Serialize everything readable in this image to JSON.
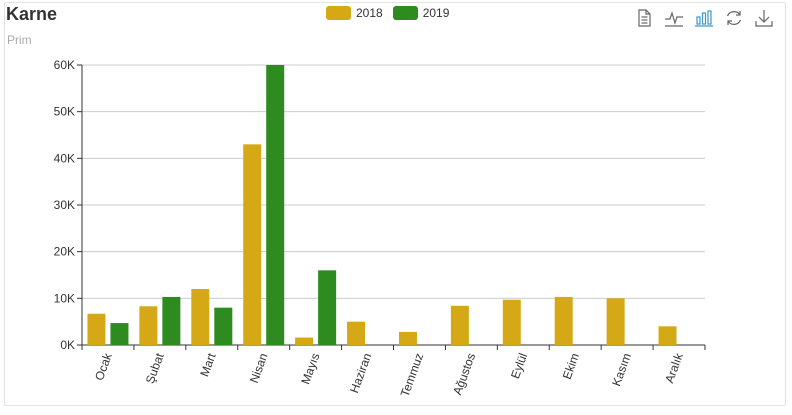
{
  "chart_data": {
    "type": "bar",
    "title": "Karne",
    "subtitle": "Prim",
    "categories": [
      "Ocak",
      "Şubat",
      "Mart",
      "Nisan",
      "Mayıs",
      "Haziran",
      "Temmuz",
      "Ağustos",
      "Eylül",
      "Ekim",
      "Kasım",
      "Aralık"
    ],
    "series": [
      {
        "name": "2018",
        "color": "#d4a915",
        "values": [
          6700,
          8300,
          12000,
          43000,
          1600,
          5000,
          2800,
          8400,
          9700,
          10300,
          10000,
          4000
        ]
      },
      {
        "name": "2019",
        "color": "#2e8b1f",
        "values": [
          4700,
          10300,
          8000,
          60000,
          16000,
          null,
          null,
          null,
          null,
          null,
          null,
          null
        ]
      }
    ],
    "y_ticks": [
      "0K",
      "10K",
      "20K",
      "30K",
      "40K",
      "50K",
      "60K"
    ],
    "ylim": [
      0,
      60000
    ],
    "grid": true,
    "legend_position": "top-center"
  },
  "toolbox": {
    "icons": [
      "data-view-icon",
      "line-chart-icon",
      "bar-chart-icon",
      "restore-icon",
      "download-icon"
    ],
    "active_color": "#3e98c5",
    "icon_color": "#666666"
  }
}
